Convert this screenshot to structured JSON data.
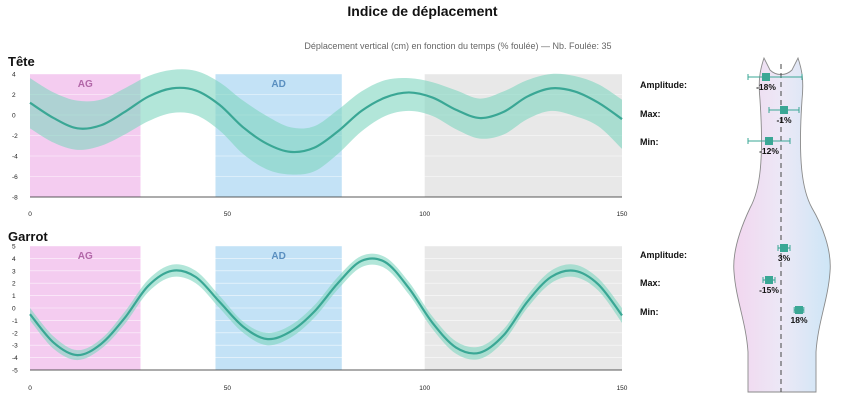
{
  "title": "Indice de déplacement",
  "subtitle": "Déplacement vertical (cm) en fonction du temps (% foulée) — Nb. Foulée: 35",
  "colors": {
    "line": "#3aa795",
    "band": "#7fd6bf",
    "ag_zone": "#f3c6ee",
    "ad_zone": "#bcdff5",
    "grey_zone": "#e6e6e6",
    "marker": "#3aa795"
  },
  "chart_data": [
    {
      "type": "line",
      "title": "Tête",
      "xlim": [
        0,
        150
      ],
      "ylim": [
        -8,
        4
      ],
      "xticks": [
        0,
        50,
        100,
        150
      ],
      "yticks": [
        4,
        2,
        0,
        -2,
        -4,
        -6,
        -8
      ],
      "zones": [
        {
          "label": "AG",
          "x0": 0,
          "x1": 28
        },
        {
          "label": "AD",
          "x0": 47,
          "x1": 79
        },
        {
          "label": "",
          "x0": 100,
          "x1": 150
        }
      ],
      "series": [
        {
          "x": [
            0,
            6,
            12,
            18,
            24,
            30,
            36,
            42,
            48,
            54,
            60,
            66,
            72,
            78,
            84,
            90,
            96,
            102,
            108,
            114,
            120,
            126,
            132,
            138,
            144,
            150
          ],
          "mean": [
            1.2,
            -0.3,
            -1.3,
            -1.0,
            0.3,
            1.8,
            2.6,
            2.4,
            1.0,
            -1.2,
            -2.8,
            -3.6,
            -3.2,
            -1.6,
            0.4,
            1.7,
            2.2,
            1.7,
            0.5,
            -0.3,
            0.3,
            1.8,
            2.6,
            2.3,
            1.2,
            -0.4
          ],
          "upper": [
            3.6,
            2.2,
            1.4,
            1.5,
            2.6,
            3.8,
            4.4,
            4.3,
            3.2,
            1.4,
            -0.1,
            -1.2,
            -1.1,
            0.5,
            2.3,
            3.4,
            3.6,
            3.2,
            2.4,
            1.6,
            2.3,
            3.4,
            4.0,
            3.8,
            3.0,
            1.5
          ],
          "lower": [
            -1.3,
            -2.7,
            -3.4,
            -3.0,
            -1.9,
            -0.6,
            0.2,
            0.0,
            -1.5,
            -3.8,
            -5.3,
            -5.8,
            -5.5,
            -3.8,
            -1.6,
            -0.1,
            0.4,
            -0.1,
            -1.4,
            -2.3,
            -1.9,
            -0.4,
            0.4,
            -0.1,
            -1.1,
            -3.3
          ]
        }
      ]
    },
    {
      "type": "line",
      "title": "Garrot",
      "xlim": [
        0,
        150
      ],
      "ylim": [
        -5,
        5
      ],
      "xticks": [
        0,
        50,
        100,
        150
      ],
      "yticks": [
        5,
        4,
        3,
        2,
        1,
        0,
        -1,
        -2,
        -3,
        -4,
        -5
      ],
      "zones": [
        {
          "label": "AG",
          "x0": 0,
          "x1": 28
        },
        {
          "label": "AD",
          "x0": 47,
          "x1": 79
        },
        {
          "label": "",
          "x0": 100,
          "x1": 150
        }
      ],
      "series": [
        {
          "x": [
            0,
            6,
            12,
            18,
            24,
            30,
            36,
            42,
            48,
            54,
            60,
            66,
            72,
            78,
            84,
            90,
            96,
            102,
            108,
            114,
            120,
            126,
            132,
            138,
            144,
            150
          ],
          "mean": [
            -0.5,
            -2.8,
            -3.8,
            -2.9,
            -0.8,
            1.8,
            3.0,
            2.5,
            0.5,
            -1.5,
            -2.5,
            -1.9,
            -0.3,
            2.0,
            3.8,
            3.7,
            1.6,
            -1.2,
            -3.2,
            -3.6,
            -2.2,
            0.5,
            2.5,
            3.0,
            1.9,
            -0.6
          ],
          "upper": [
            0.0,
            -2.3,
            -3.4,
            -2.5,
            -0.3,
            2.3,
            3.5,
            3.0,
            1.0,
            -1.1,
            -2.0,
            -1.4,
            0.2,
            2.5,
            4.2,
            4.1,
            2.1,
            -0.7,
            -2.7,
            -3.1,
            -1.7,
            1.0,
            3.0,
            3.5,
            2.4,
            0.0
          ],
          "lower": [
            -1.0,
            -3.3,
            -4.2,
            -3.3,
            -1.3,
            1.3,
            2.5,
            2.0,
            0.0,
            -2.0,
            -3.0,
            -2.4,
            -0.8,
            1.5,
            3.3,
            3.2,
            1.1,
            -1.7,
            -3.7,
            -4.1,
            -2.7,
            0.0,
            2.0,
            2.5,
            1.4,
            -1.2
          ]
        }
      ]
    }
  ],
  "stats": {
    "tete": [
      {
        "label": "Amplitude:",
        "value": "-18%",
        "pos": -0.25,
        "err_lo": -0.55,
        "err_hi": 0.35
      },
      {
        "label": "Max:",
        "value": "-1%",
        "pos": 0.05,
        "err_lo": -0.2,
        "err_hi": 0.3
      },
      {
        "label": "Min:",
        "value": "-12%",
        "pos": -0.2,
        "err_lo": -0.55,
        "err_hi": 0.15
      }
    ],
    "garrot": [
      {
        "label": "Amplitude:",
        "value": "3%",
        "pos": 0.05,
        "err_lo": -0.05,
        "err_hi": 0.15
      },
      {
        "label": "Max:",
        "value": "-15%",
        "pos": -0.2,
        "err_lo": -0.3,
        "err_hi": -0.1
      },
      {
        "label": "Min:",
        "value": "18%",
        "pos": 0.3,
        "err_lo": 0.22,
        "err_hi": 0.38
      }
    ]
  }
}
